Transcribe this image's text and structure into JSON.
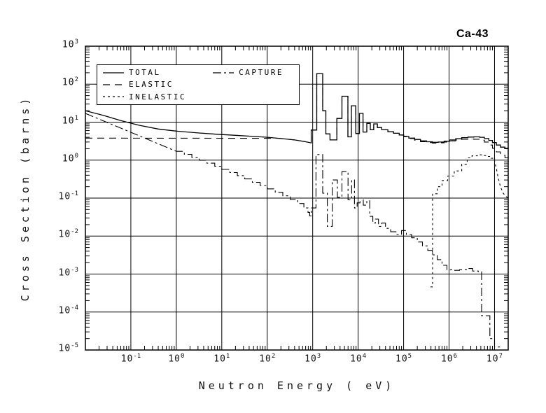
{
  "page": {
    "background": "#ffffff",
    "ink_color": "#000000"
  },
  "chart_data": {
    "type": "line",
    "title": "Ca-43",
    "xlabel": "Neutron Energy ( eV)",
    "ylabel": "Cross Section (barns)",
    "x_scale": "log",
    "y_scale": "log",
    "xlim": [
      0.01,
      20000000
    ],
    "ylim": [
      1e-05,
      1000
    ],
    "grid": true,
    "legend_position": "top-left",
    "x_tick_exponents": [
      -1,
      0,
      1,
      2,
      3,
      4,
      5,
      6,
      7
    ],
    "y_tick_exponents": [
      3,
      2,
      1,
      0,
      -1,
      -2,
      -3,
      -4,
      -5
    ],
    "line_color": "#000000",
    "series": [
      {
        "name": "total",
        "label": "TOTAL",
        "line_style": "solid",
        "segments": [
          {
            "mode": "line",
            "points": [
              [
                0.01,
                20
              ],
              [
                0.025,
                15
              ],
              [
                0.06,
                11
              ],
              [
                0.15,
                8.3
              ],
              [
                0.4,
                6.6
              ],
              [
                1,
                5.8
              ],
              [
                3,
                5.2
              ],
              [
                8,
                4.8
              ],
              [
                20,
                4.5
              ],
              [
                50,
                4.2
              ],
              [
                100,
                4.0
              ],
              [
                200,
                3.7
              ],
              [
                400,
                3.4
              ],
              [
                650,
                3.1
              ],
              [
                930,
                2.85
              ]
            ]
          },
          {
            "mode": "steps",
            "points": [
              [
                930,
                6.2
              ],
              [
                1230,
                190
              ],
              [
                1660,
                20
              ],
              [
                1950,
                4.9
              ],
              [
                2400,
                3.4
              ],
              [
                3400,
                12.5
              ],
              [
                4400,
                48
              ],
              [
                5950,
                4.1
              ],
              [
                7100,
                27
              ],
              [
                8900,
                5.0
              ],
              [
                10700,
                17
              ],
              [
                12800,
                5.5
              ],
              [
                15500,
                9.3
              ],
              [
                18500,
                6.3
              ],
              [
                22000,
                9.0
              ],
              [
                26500,
                7.2
              ],
              [
                33000,
                6.3
              ],
              [
                45000,
                5.6
              ],
              [
                60000,
                5.1
              ],
              [
                80000,
                4.6
              ],
              [
                100000,
                4.2
              ],
              [
                130000,
                3.8
              ],
              [
                175000,
                3.5
              ],
              [
                235000,
                3.2
              ],
              [
                320000,
                3.05
              ],
              [
                430000,
                2.95
              ],
              [
                580000,
                3.0
              ],
              [
                780000,
                3.15
              ],
              [
                1050000,
                3.4
              ],
              [
                1400000,
                3.65
              ],
              [
                1900000,
                3.9
              ],
              [
                2600000,
                4.05
              ],
              [
                3500000,
                4.1
              ],
              [
                4700000,
                4.0
              ],
              [
                6000000,
                3.7
              ],
              [
                7500000,
                3.3
              ],
              [
                9000000,
                2.9
              ],
              [
                11000000,
                2.5
              ],
              [
                13500000,
                2.2
              ],
              [
                17000000,
                2.05
              ],
              [
                20000000,
                2.0
              ]
            ]
          }
        ]
      },
      {
        "name": "elastic",
        "label": "ELASTIC",
        "line_style": "long-dash",
        "segments": [
          {
            "mode": "line",
            "points": [
              [
                0.01,
                3.8
              ],
              [
                180,
                3.75
              ],
              [
                400,
                3.4
              ],
              [
                650,
                3.1
              ],
              [
                930,
                2.85
              ]
            ]
          },
          {
            "mode": "steps",
            "points": [
              [
                930,
                6.2
              ],
              [
                1230,
                190
              ],
              [
                1660,
                20
              ],
              [
                1950,
                4.9
              ],
              [
                2400,
                3.4
              ],
              [
                3400,
                12.5
              ],
              [
                4400,
                48
              ],
              [
                5950,
                4.1
              ],
              [
                7100,
                27
              ],
              [
                8900,
                5.0
              ],
              [
                10700,
                17
              ],
              [
                12800,
                5.5
              ],
              [
                15500,
                9.3
              ],
              [
                18500,
                6.3
              ],
              [
                22000,
                9.0
              ],
              [
                26500,
                7.2
              ],
              [
                33000,
                6.3
              ],
              [
                45000,
                5.6
              ],
              [
                60000,
                5.1
              ],
              [
                80000,
                4.55
              ],
              [
                100000,
                4.1
              ],
              [
                130000,
                3.7
              ],
              [
                175000,
                3.35
              ],
              [
                235000,
                3.05
              ],
              [
                320000,
                2.9
              ],
              [
                430000,
                2.8
              ],
              [
                580000,
                2.85
              ],
              [
                780000,
                3.0
              ],
              [
                1050000,
                3.2
              ],
              [
                1400000,
                3.4
              ],
              [
                1900000,
                3.55
              ],
              [
                2600000,
                3.6
              ],
              [
                3500000,
                3.55
              ],
              [
                4700000,
                3.35
              ],
              [
                6000000,
                3.0
              ],
              [
                7500000,
                2.5
              ],
              [
                9000000,
                2.05
              ],
              [
                11000000,
                1.65
              ],
              [
                13500000,
                1.35
              ],
              [
                17000000,
                1.15
              ],
              [
                20000000,
                1.1
              ]
            ]
          }
        ]
      },
      {
        "name": "inelastic",
        "label": "INELASTIC",
        "line_style": "short-dash",
        "segments": [
          {
            "mode": "steps",
            "points": [
              [
                390000,
                0.00046
              ],
              [
                435000,
                0.13
              ],
              [
                550000,
                0.2
              ],
              [
                700000,
                0.29
              ],
              [
                930000,
                0.38
              ],
              [
                1300000,
                0.52
              ],
              [
                1900000,
                0.78
              ],
              [
                2500000,
                1.15
              ],
              [
                3200000,
                1.3
              ],
              [
                4200000,
                1.38
              ],
              [
                5500000,
                1.32
              ],
              [
                7000000,
                1.25
              ],
              [
                8500000,
                1.12
              ],
              [
                10000000,
                0.95
              ]
            ]
          },
          {
            "mode": "line",
            "points": [
              [
                11000000,
                0.6
              ],
              [
                12000000,
                0.35
              ],
              [
                13500000,
                0.2
              ],
              [
                15500000,
                0.135
              ],
              [
                18000000,
                0.11
              ],
              [
                20000000,
                0.1
              ]
            ]
          }
        ]
      },
      {
        "name": "capture",
        "label": "CAPTURE",
        "line_style": "dash-dot",
        "segments": [
          {
            "mode": "line",
            "points": [
              [
                0.01,
                17
              ],
              [
                0.1,
                5.4
              ],
              [
                1,
                1.7
              ]
            ]
          },
          {
            "mode": "steps",
            "points": [
              [
                1.5,
                1.42
              ],
              [
                2.2,
                1.18
              ],
              [
                3.2,
                0.99
              ],
              [
                4.7,
                0.83
              ],
              [
                7,
                0.69
              ],
              [
                10,
                0.57
              ],
              [
                15,
                0.47
              ],
              [
                22,
                0.39
              ],
              [
                32,
                0.32
              ],
              [
                47,
                0.26
              ],
              [
                70,
                0.215
              ],
              [
                100,
                0.175
              ],
              [
                150,
                0.142
              ],
              [
                220,
                0.115
              ],
              [
                320,
                0.092
              ],
              [
                470,
                0.072
              ],
              [
                640,
                0.055
              ],
              [
                790,
                0.042
              ],
              [
                860,
                0.034
              ],
              [
                930,
                0.055
              ],
              [
                1180,
                1.4
              ],
              [
                1660,
                0.135
              ],
              [
                2100,
                0.018
              ],
              [
                2700,
                0.3
              ],
              [
                3500,
                0.105
              ],
              [
                4400,
                0.5
              ],
              [
                6000,
                0.09
              ],
              [
                7200,
                0.3
              ],
              [
                8300,
                0.055
              ],
              [
                9500,
                0.075
              ],
              [
                11000,
                0.1
              ],
              [
                13000,
                0.065
              ],
              [
                15500,
                0.085
              ],
              [
                18000,
                0.033
              ],
              [
                21000,
                0.022
              ],
              [
                24000,
                0.028
              ],
              [
                28000,
                0.018
              ],
              [
                33000,
                0.022
              ],
              [
                40000,
                0.016
              ],
              [
                52000,
                0.013
              ],
              [
                68000,
                0.011
              ],
              [
                90000,
                0.014
              ],
              [
                115000,
                0.011
              ],
              [
                150000,
                0.009
              ],
              [
                200000,
                0.007
              ],
              [
                260000,
                0.0055
              ],
              [
                340000,
                0.0042
              ],
              [
                430000,
                0.0032
              ],
              [
                550000,
                0.0024
              ],
              [
                700000,
                0.0017
              ],
              [
                900000,
                0.0013
              ],
              [
                1200000,
                0.00125
              ],
              [
                1700000,
                0.0013
              ],
              [
                2400000,
                0.0014
              ],
              [
                3300000,
                0.0012
              ],
              [
                4400000,
                0.00115
              ],
              [
                5200000,
                8e-05
              ],
              [
                7900000,
                2e-05
              ],
              [
                10000000,
                1.2e-05
              ],
              [
                14000000,
                1.2e-05
              ]
            ]
          }
        ]
      }
    ]
  }
}
